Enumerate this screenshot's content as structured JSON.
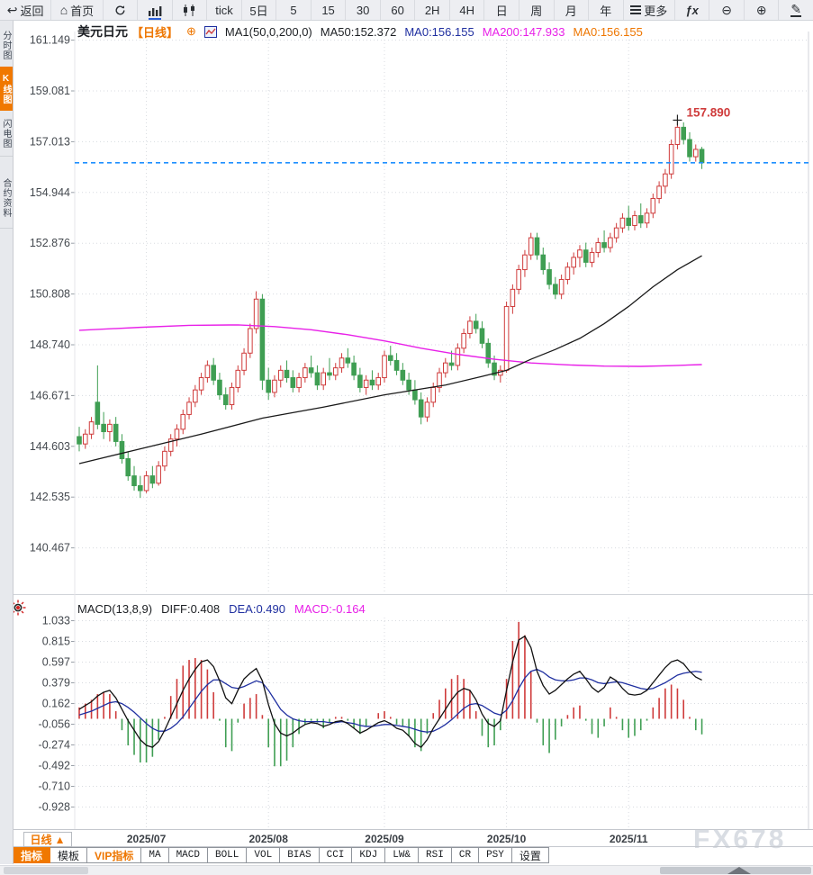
{
  "app": {
    "watermark": "FX678"
  },
  "colors": {
    "accent_orange": "#ee7600",
    "up_red": "#cf3b3b",
    "down_green": "#3f9e53",
    "ma50_black": "#1a1a1a",
    "ma200_magenta": "#e820e8",
    "diff_black": "#111111",
    "dea_blue": "#1f2fa0",
    "price_line_blue": "#1f8fff",
    "high_label_red": "#cf3b3b",
    "grid": "#d8dbe0",
    "axis_text": "#44494f"
  },
  "toolbar": {
    "items": [
      {
        "name": "back",
        "icon": "↩",
        "label": "返回"
      },
      {
        "name": "home",
        "icon": "⌂",
        "label": "首页"
      },
      {
        "name": "refresh",
        "icon": "refresh-icon",
        "label": ""
      },
      {
        "name": "bar-chart",
        "icon": "bar-chart-icon",
        "label": ""
      },
      {
        "name": "candle-chart",
        "icon": "candlestick-icon",
        "label": ""
      },
      {
        "name": "tick",
        "label": "tick"
      },
      {
        "name": "5d",
        "label": "5日"
      },
      {
        "name": "5",
        "label": "5"
      },
      {
        "name": "15",
        "label": "15"
      },
      {
        "name": "30",
        "label": "30"
      },
      {
        "name": "60",
        "label": "60"
      },
      {
        "name": "2h",
        "label": "2H"
      },
      {
        "name": "4h",
        "label": "4H"
      },
      {
        "name": "day",
        "label": "日"
      },
      {
        "name": "week",
        "label": "周"
      },
      {
        "name": "month",
        "label": "月"
      },
      {
        "name": "year",
        "label": "年"
      },
      {
        "name": "more",
        "icon": "hamburger-icon",
        "label": "更多"
      },
      {
        "name": "fx",
        "label": "ƒx"
      },
      {
        "name": "zoom-out",
        "icon": "⊖",
        "label": ""
      },
      {
        "name": "zoom-in",
        "icon": "⊕",
        "label": ""
      },
      {
        "name": "draw",
        "icon": "✎",
        "label": ""
      }
    ]
  },
  "sidebar": {
    "tabs": [
      {
        "label": "分时图",
        "active": false
      },
      {
        "label": "K线图",
        "active": true
      },
      {
        "label": "闪电图",
        "active": false
      },
      {
        "label": "合约资料",
        "active": false
      }
    ]
  },
  "chart_header": {
    "symbol": "美元日元",
    "period_tag": "【日线】",
    "plus_icon": "⊕",
    "ma_settings": "MA1(50,0,200,0)",
    "ma50": "MA50:152.372",
    "ma0_blue": "MA0:156.155",
    "ma200": "MA200:147.933",
    "ma0_orange": "MA0:156.155"
  },
  "macd_header": {
    "title": "MACD(13,8,9)",
    "diff": "DIFF:0.408",
    "dea": "DEA:0.490",
    "macd": "MACD:-0.164"
  },
  "bottom": {
    "period_tab": "日线",
    "period_arrow": "▲",
    "indicator_tabs": [
      {
        "label": "指标",
        "style": "active"
      },
      {
        "label": "模板",
        "style": "normal"
      },
      {
        "label": "VIP指标",
        "style": "vip"
      },
      {
        "label": "MA",
        "style": "mono"
      },
      {
        "label": "MACD",
        "style": "mono"
      },
      {
        "label": "BOLL",
        "style": "mono"
      },
      {
        "label": "VOL",
        "style": "mono"
      },
      {
        "label": "BIAS",
        "style": "mono"
      },
      {
        "label": "CCI",
        "style": "mono"
      },
      {
        "label": "KDJ",
        "style": "mono"
      },
      {
        "label": "LW&",
        "style": "mono"
      },
      {
        "label": "RSI",
        "style": "mono"
      },
      {
        "label": "CR",
        "style": "mono"
      },
      {
        "label": "PSY",
        "style": "mono"
      },
      {
        "label": "设置",
        "style": "normal"
      }
    ]
  },
  "chart_data": [
    {
      "type": "candlestick",
      "title": "美元日元 日线",
      "y_tick_labels": [
        "161.149",
        "159.081",
        "157.013",
        "154.944",
        "152.876",
        "150.808",
        "148.740",
        "146.671",
        "144.603",
        "142.535",
        "140.467"
      ],
      "x_axis_labels": [
        {
          "label": "2025/07",
          "index": 11
        },
        {
          "label": "2025/08",
          "index": 31
        },
        {
          "label": "2025/09",
          "index": 50
        },
        {
          "label": "2025/10",
          "index": 70
        },
        {
          "label": "2025/11",
          "index": 90
        }
      ],
      "current_price": 156.155,
      "high_annotation": {
        "label": "157.890",
        "index": 98,
        "price": 157.89
      },
      "ma50_points": [
        [
          0,
          143.9
        ],
        [
          10,
          144.5
        ],
        [
          20,
          145.1
        ],
        [
          30,
          145.75
        ],
        [
          40,
          146.2
        ],
        [
          50,
          146.7
        ],
        [
          60,
          147.1
        ],
        [
          66,
          147.45
        ],
        [
          70,
          147.7
        ],
        [
          74,
          148.15
        ],
        [
          78,
          148.55
        ],
        [
          82,
          149.0
        ],
        [
          86,
          149.6
        ],
        [
          90,
          150.3
        ],
        [
          94,
          151.1
        ],
        [
          98,
          151.8
        ],
        [
          102,
          152.37
        ]
      ],
      "ma200_points": [
        [
          0,
          149.33
        ],
        [
          10,
          149.45
        ],
        [
          18,
          149.53
        ],
        [
          26,
          149.55
        ],
        [
          32,
          149.48
        ],
        [
          38,
          149.35
        ],
        [
          44,
          149.15
        ],
        [
          50,
          148.9
        ],
        [
          56,
          148.6
        ],
        [
          62,
          148.35
        ],
        [
          68,
          148.15
        ],
        [
          74,
          148.0
        ],
        [
          80,
          147.92
        ],
        [
          86,
          147.87
        ],
        [
          92,
          147.86
        ],
        [
          97,
          147.89
        ],
        [
          102,
          147.933
        ]
      ],
      "candles_ohlc": [
        [
          145.0,
          145.4,
          144.4,
          144.7
        ],
        [
          144.7,
          145.3,
          144.5,
          145.1
        ],
        [
          145.1,
          145.8,
          144.9,
          145.6
        ],
        [
          146.4,
          147.9,
          145.3,
          145.5
        ],
        [
          145.5,
          146.0,
          144.9,
          145.2
        ],
        [
          145.2,
          145.7,
          144.8,
          145.5
        ],
        [
          145.5,
          145.8,
          144.6,
          144.8
        ],
        [
          144.8,
          145.1,
          143.9,
          144.1
        ],
        [
          144.1,
          144.4,
          143.2,
          143.4
        ],
        [
          143.4,
          143.8,
          142.8,
          143.0
        ],
        [
          143.0,
          143.4,
          142.5,
          142.8
        ],
        [
          142.8,
          143.6,
          142.7,
          143.4
        ],
        [
          143.4,
          143.8,
          142.9,
          143.1
        ],
        [
          143.1,
          144.0,
          143.0,
          143.8
        ],
        [
          143.8,
          144.6,
          143.6,
          144.4
        ],
        [
          144.4,
          145.1,
          144.2,
          144.9
        ],
        [
          144.9,
          145.5,
          144.6,
          145.3
        ],
        [
          145.3,
          146.1,
          145.1,
          145.9
        ],
        [
          145.9,
          146.6,
          145.7,
          146.4
        ],
        [
          146.4,
          147.1,
          146.2,
          146.9
        ],
        [
          146.9,
          147.6,
          146.7,
          147.4
        ],
        [
          147.4,
          148.1,
          147.2,
          147.9
        ],
        [
          147.9,
          148.2,
          147.1,
          147.3
        ],
        [
          147.3,
          147.6,
          146.5,
          146.7
        ],
        [
          146.7,
          147.0,
          146.1,
          146.3
        ],
        [
          146.3,
          147.2,
          146.1,
          147.0
        ],
        [
          147.0,
          147.9,
          146.8,
          147.7
        ],
        [
          147.7,
          148.6,
          147.5,
          148.4
        ],
        [
          148.4,
          149.6,
          148.2,
          149.4
        ],
        [
          149.4,
          150.92,
          149.2,
          150.6
        ],
        [
          150.6,
          150.8,
          146.9,
          147.3
        ],
        [
          147.3,
          147.8,
          146.5,
          146.8
        ],
        [
          146.8,
          147.5,
          146.6,
          147.3
        ],
        [
          147.3,
          147.9,
          147.0,
          147.7
        ],
        [
          147.7,
          148.1,
          147.2,
          147.4
        ],
        [
          147.4,
          147.7,
          146.8,
          147.0
        ],
        [
          147.0,
          147.6,
          146.8,
          147.4
        ],
        [
          147.4,
          148.0,
          147.2,
          147.8
        ],
        [
          147.8,
          148.3,
          147.4,
          147.6
        ],
        [
          147.6,
          147.9,
          146.9,
          147.1
        ],
        [
          147.1,
          147.8,
          146.9,
          147.6
        ],
        [
          147.6,
          148.2,
          147.3,
          147.5
        ],
        [
          147.5,
          148.0,
          147.3,
          147.8
        ],
        [
          147.8,
          148.4,
          147.6,
          148.2
        ],
        [
          148.2,
          148.6,
          147.8,
          148.0
        ],
        [
          148.0,
          148.3,
          147.3,
          147.5
        ],
        [
          147.5,
          147.8,
          146.8,
          147.0
        ],
        [
          147.0,
          147.5,
          146.7,
          147.3
        ],
        [
          147.3,
          147.7,
          146.9,
          147.1
        ],
        [
          147.1,
          147.6,
          146.9,
          147.4
        ],
        [
          147.4,
          148.5,
          147.2,
          148.3
        ],
        [
          148.3,
          148.7,
          147.9,
          148.1
        ],
        [
          148.1,
          148.4,
          147.5,
          147.7
        ],
        [
          147.7,
          148.0,
          147.1,
          147.3
        ],
        [
          147.3,
          147.6,
          146.7,
          146.9
        ],
        [
          146.9,
          147.3,
          146.3,
          146.5
        ],
        [
          146.5,
          146.8,
          145.5,
          145.8
        ],
        [
          145.8,
          146.6,
          145.6,
          146.4
        ],
        [
          146.4,
          147.2,
          146.2,
          147.0
        ],
        [
          147.0,
          147.8,
          146.8,
          147.6
        ],
        [
          147.6,
          148.2,
          147.4,
          148.0
        ],
        [
          148.0,
          148.5,
          147.7,
          147.9
        ],
        [
          147.9,
          148.8,
          147.7,
          148.6
        ],
        [
          148.6,
          149.4,
          148.4,
          149.2
        ],
        [
          149.2,
          149.9,
          149.0,
          149.7
        ],
        [
          149.7,
          150.0,
          149.2,
          149.4
        ],
        [
          149.4,
          149.7,
          148.6,
          148.8
        ],
        [
          148.8,
          149.0,
          147.8,
          148.0
        ],
        [
          148.0,
          148.3,
          147.3,
          147.5
        ],
        [
          147.5,
          147.9,
          147.2,
          147.7
        ],
        [
          147.7,
          150.5,
          147.6,
          150.3
        ],
        [
          150.3,
          151.2,
          150.0,
          151.0
        ],
        [
          151.0,
          152.0,
          150.8,
          151.8
        ],
        [
          151.8,
          152.6,
          151.5,
          152.4
        ],
        [
          152.4,
          153.3,
          152.2,
          153.1
        ],
        [
          153.1,
          153.3,
          152.2,
          152.4
        ],
        [
          152.4,
          152.7,
          151.6,
          151.8
        ],
        [
          151.8,
          152.1,
          151.0,
          151.2
        ],
        [
          151.2,
          151.5,
          150.6,
          150.8
        ],
        [
          150.8,
          151.6,
          150.6,
          151.4
        ],
        [
          151.4,
          152.1,
          151.2,
          151.9
        ],
        [
          151.9,
          152.5,
          151.6,
          152.3
        ],
        [
          152.3,
          152.8,
          151.9,
          152.6
        ],
        [
          152.6,
          152.9,
          151.9,
          152.1
        ],
        [
          152.1,
          152.7,
          151.9,
          152.5
        ],
        [
          152.5,
          153.1,
          152.3,
          152.9
        ],
        [
          152.9,
          153.4,
          152.5,
          152.7
        ],
        [
          152.7,
          153.3,
          152.5,
          153.1
        ],
        [
          153.1,
          153.7,
          152.9,
          153.5
        ],
        [
          153.5,
          154.1,
          153.3,
          153.9
        ],
        [
          153.9,
          154.4,
          153.4,
          153.6
        ],
        [
          153.6,
          154.2,
          153.4,
          154.0
        ],
        [
          154.0,
          154.5,
          153.5,
          153.7
        ],
        [
          153.7,
          154.3,
          153.5,
          154.1
        ],
        [
          154.1,
          154.9,
          153.9,
          154.7
        ],
        [
          154.7,
          155.4,
          154.5,
          155.2
        ],
        [
          155.2,
          155.9,
          154.9,
          155.7
        ],
        [
          155.7,
          157.1,
          155.5,
          156.9
        ],
        [
          156.9,
          157.89,
          156.7,
          157.6
        ],
        [
          157.6,
          157.8,
          156.9,
          157.1
        ],
        [
          157.1,
          157.4,
          156.2,
          156.4
        ],
        [
          156.4,
          156.9,
          156.2,
          156.7
        ],
        [
          156.7,
          156.8,
          155.9,
          156.155
        ]
      ]
    },
    {
      "type": "macd",
      "params": "(13,8,9)",
      "last": {
        "diff": 0.408,
        "dea": 0.49,
        "macd": -0.164
      },
      "hist_rule": "2*(diff-dea)",
      "y_tick_labels": [
        "1.033",
        "0.815",
        "0.597",
        "0.379",
        "0.162",
        "-0.056",
        "-0.274",
        "-0.492",
        "-0.710",
        "-0.928"
      ],
      "diff": [
        0.1,
        0.14,
        0.18,
        0.24,
        0.28,
        0.3,
        0.22,
        0.1,
        -0.02,
        -0.12,
        -0.22,
        -0.28,
        -0.3,
        -0.24,
        -0.12,
        0.02,
        0.16,
        0.3,
        0.42,
        0.52,
        0.6,
        0.62,
        0.55,
        0.4,
        0.22,
        0.16,
        0.3,
        0.42,
        0.48,
        0.53,
        0.4,
        0.15,
        -0.05,
        -0.15,
        -0.18,
        -0.15,
        -0.1,
        -0.06,
        -0.04,
        -0.05,
        -0.08,
        -0.06,
        -0.03,
        -0.02,
        -0.05,
        -0.1,
        -0.15,
        -0.12,
        -0.08,
        -0.04,
        -0.02,
        -0.05,
        -0.1,
        -0.12,
        -0.18,
        -0.26,
        -0.3,
        -0.22,
        -0.1,
        0.0,
        0.1,
        0.2,
        0.28,
        0.32,
        0.3,
        0.2,
        0.05,
        -0.05,
        -0.08,
        -0.02,
        0.3,
        0.6,
        0.83,
        0.87,
        0.75,
        0.5,
        0.35,
        0.26,
        0.3,
        0.36,
        0.42,
        0.47,
        0.5,
        0.42,
        0.33,
        0.28,
        0.33,
        0.44,
        0.4,
        0.32,
        0.26,
        0.25,
        0.26,
        0.3,
        0.38,
        0.46,
        0.54,
        0.6,
        0.62,
        0.58,
        0.5,
        0.44,
        0.408
      ],
      "dea": [
        0.04,
        0.06,
        0.08,
        0.11,
        0.14,
        0.17,
        0.18,
        0.16,
        0.12,
        0.07,
        0.01,
        -0.05,
        -0.1,
        -0.13,
        -0.13,
        -0.1,
        -0.05,
        0.02,
        0.11,
        0.2,
        0.29,
        0.36,
        0.41,
        0.41,
        0.37,
        0.33,
        0.32,
        0.34,
        0.37,
        0.4,
        0.38,
        0.3,
        0.2,
        0.1,
        0.04,
        0.0,
        -0.02,
        -0.03,
        -0.03,
        -0.03,
        -0.03,
        -0.04,
        -0.04,
        -0.03,
        -0.04,
        -0.05,
        -0.07,
        -0.08,
        -0.08,
        -0.07,
        -0.06,
        -0.06,
        -0.07,
        -0.08,
        -0.09,
        -0.11,
        -0.13,
        -0.14,
        -0.13,
        -0.1,
        -0.06,
        -0.01,
        0.05,
        0.11,
        0.15,
        0.16,
        0.14,
        0.1,
        0.06,
        0.04,
        0.09,
        0.19,
        0.32,
        0.43,
        0.5,
        0.52,
        0.49,
        0.44,
        0.41,
        0.4,
        0.4,
        0.41,
        0.43,
        0.43,
        0.41,
        0.38,
        0.37,
        0.38,
        0.39,
        0.38,
        0.36,
        0.34,
        0.32,
        0.31,
        0.32,
        0.35,
        0.38,
        0.42,
        0.46,
        0.48,
        0.49,
        0.5,
        0.49
      ]
    }
  ]
}
